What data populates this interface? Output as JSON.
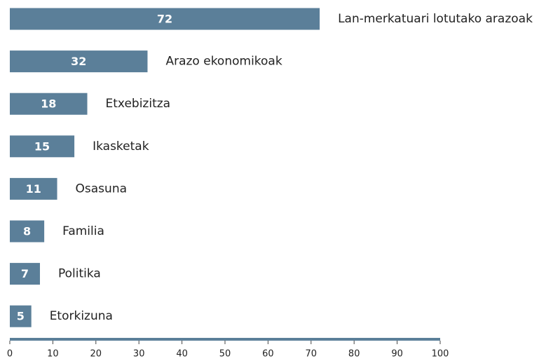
{
  "chart_data": {
    "type": "bar",
    "orientation": "horizontal",
    "categories": [
      "Lan-merkatuari lotutako arazoak",
      "Arazo ekonomikoak",
      "Etxebizitza",
      "Ikasketak",
      "Osasuna",
      "Familia",
      "Politika",
      "Etorkizuna"
    ],
    "values": [
      72,
      32,
      18,
      15,
      11,
      8,
      7,
      5
    ],
    "color": "#5b7f99",
    "xlim": [
      0,
      100
    ],
    "xticks": [
      0,
      10,
      20,
      30,
      40,
      50,
      60,
      70,
      80,
      90,
      100
    ]
  }
}
